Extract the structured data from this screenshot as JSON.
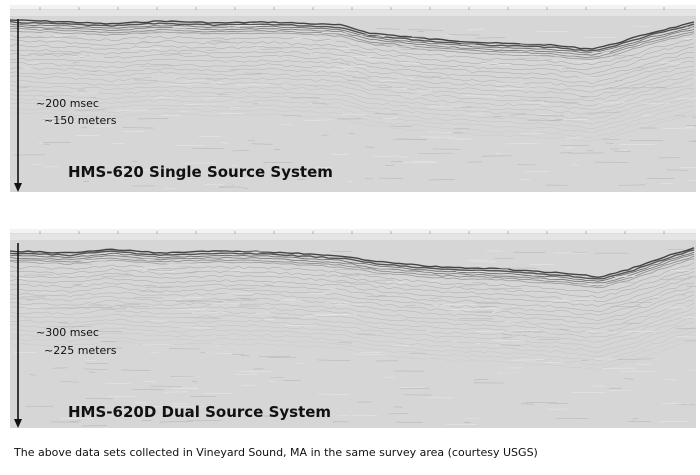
{
  "top_panel": {
    "time_label": "~200 msec",
    "depth_label": "~150 meters",
    "title": "HMS-620 Single Source System"
  },
  "bottom_panel": {
    "time_label": "~300 msec",
    "depth_label": "~225 meters",
    "title": "HMS-620D Dual Source System"
  },
  "caption": "The above data sets collected in Vineyard Sound, MA in the same survey area (courtesy USGS)",
  "colors": {
    "background": "#ffffff",
    "record_gray": "#d6d6d6",
    "reflector_dark": "#2a2a2a",
    "arrow": "#111111"
  }
}
